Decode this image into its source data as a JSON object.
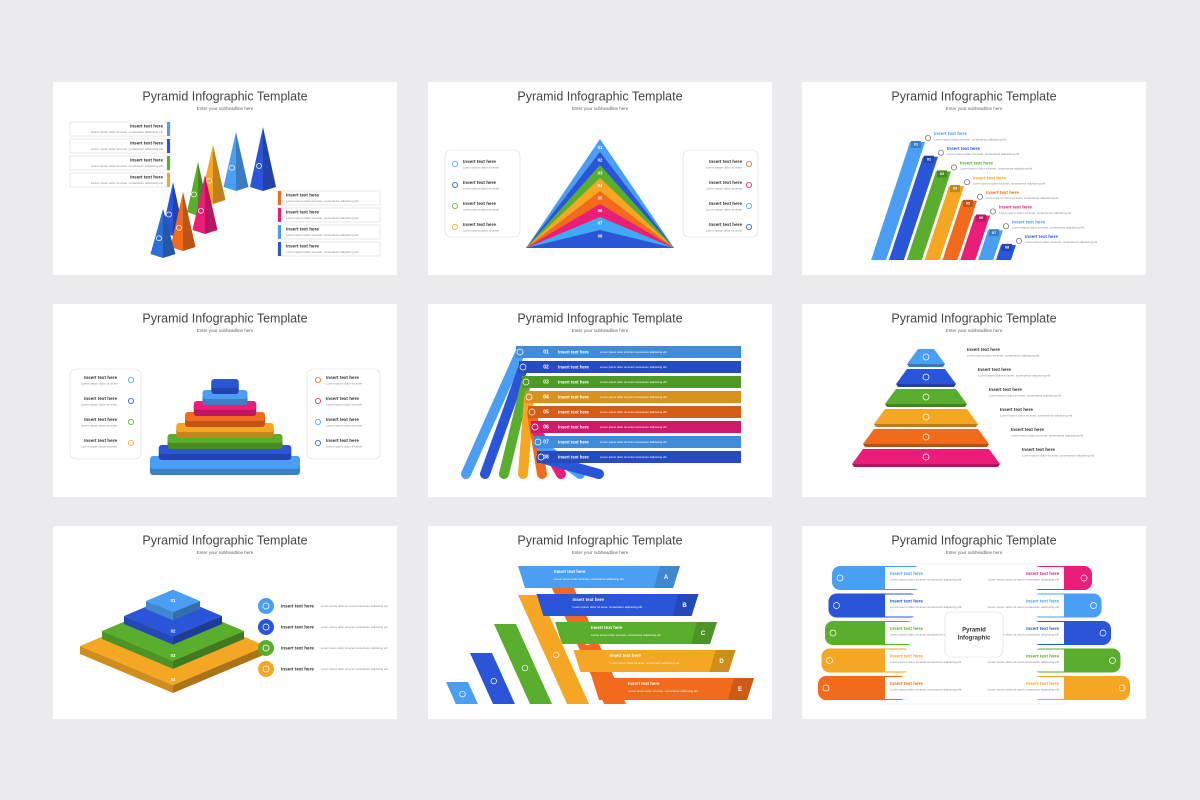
{
  "slides": [
    {
      "title": "Pyramid Infographic Template",
      "subtitle": "Enter your subheadline here",
      "items": [
        {
          "heading": "Insert text here",
          "text": "Lorem ipsum dolor sit amet, consectetur adipiscing elit"
        },
        {
          "heading": "Insert text here",
          "text": "Lorem ipsum dolor sit amet, consectetur adipiscing elit"
        },
        {
          "heading": "Insert text here",
          "text": "Lorem ipsum dolor sit amet, consectetur adipiscing elit"
        },
        {
          "heading": "Insert text here",
          "text": "Lorem ipsum dolor sit amet, consectetur adipiscing elit"
        },
        {
          "heading": "Insert text here",
          "text": "Lorem ipsum dolor sit amet, consectetur adipiscing elit"
        },
        {
          "heading": "Insert text here",
          "text": "Lorem ipsum dolor sit amet, consectetur adipiscing elit"
        },
        {
          "heading": "Insert text here",
          "text": "Lorem ipsum dolor sit amet, consectetur adipiscing elit"
        },
        {
          "heading": "Insert text here",
          "text": "Lorem ipsum dolor sit amet, consectetur adipiscing elit"
        }
      ]
    },
    {
      "title": "Pyramid Infographic Template",
      "subtitle": "Enter your subheadline here",
      "items": [
        {
          "heading": "Insert text here",
          "text": "Lorem ipsum dolor sit amet"
        },
        {
          "heading": "Insert text here",
          "text": "Lorem ipsum dolor sit amet"
        },
        {
          "heading": "Insert text here",
          "text": "Lorem ipsum dolor sit amet"
        },
        {
          "heading": "Insert text here",
          "text": "Lorem ipsum dolor sit amet"
        },
        {
          "heading": "Insert text here",
          "text": "Lorem ipsum dolor sit amet"
        },
        {
          "heading": "Insert text here",
          "text": "Lorem ipsum dolor sit amet"
        },
        {
          "heading": "Insert text here",
          "text": "Lorem ipsum dolor sit amet"
        },
        {
          "heading": "Insert text here",
          "text": "Lorem ipsum dolor sit amet"
        }
      ],
      "labels": [
        "01",
        "02",
        "03",
        "04",
        "05",
        "06",
        "07",
        "08"
      ]
    },
    {
      "title": "Pyramid Infographic Template",
      "subtitle": "Enter your subheadline here",
      "items": [
        {
          "heading": "Insert text here",
          "text": "Lorem ipsum dolor sit amet, consectetur adipiscing elit"
        },
        {
          "heading": "Insert text here",
          "text": "Lorem ipsum dolor sit amet, consectetur adipiscing elit"
        },
        {
          "heading": "Insert text here",
          "text": "Lorem ipsum dolor sit amet, consectetur adipiscing elit"
        },
        {
          "heading": "Insert text here",
          "text": "Lorem ipsum dolor sit amet, consectetur adipiscing elit"
        },
        {
          "heading": "Insert text here",
          "text": "Lorem ipsum dolor sit amet, consectetur adipiscing elit"
        },
        {
          "heading": "Insert text here",
          "text": "Lorem ipsum dolor sit amet, consectetur adipiscing elit"
        },
        {
          "heading": "Insert text here",
          "text": "Lorem ipsum dolor sit amet, consectetur adipiscing elit"
        },
        {
          "heading": "Insert text here",
          "text": "Lorem ipsum dolor sit amet, consectetur adipiscing elit"
        }
      ],
      "labels": [
        "01",
        "02",
        "03",
        "04",
        "05",
        "06",
        "07",
        "08"
      ]
    },
    {
      "title": "Pyramid Infographic Template",
      "subtitle": "Enter your subheadline here",
      "items": [
        {
          "heading": "Insert text here",
          "text": "Lorem ipsum dolor sit amet"
        },
        {
          "heading": "Insert text here",
          "text": "Lorem ipsum dolor sit amet"
        },
        {
          "heading": "Insert text here",
          "text": "Lorem ipsum dolor sit amet"
        },
        {
          "heading": "Insert text here",
          "text": "Lorem ipsum dolor sit amet"
        },
        {
          "heading": "Insert text here",
          "text": "Lorem ipsum dolor sit amet"
        },
        {
          "heading": "Insert text here",
          "text": "Lorem ipsum dolor sit amet"
        },
        {
          "heading": "Insert text here",
          "text": "Lorem ipsum dolor sit amet"
        },
        {
          "heading": "Insert text here",
          "text": "Lorem ipsum dolor sit amet"
        }
      ]
    },
    {
      "title": "Pyramid Infographic Template",
      "subtitle": "Enter your subheadline here",
      "items": [
        {
          "heading": "Insert text here",
          "text": "Lorem ipsum dolor sit amet consectetur adipiscing elit"
        },
        {
          "heading": "Insert text here",
          "text": "Lorem ipsum dolor sit amet consectetur adipiscing elit"
        },
        {
          "heading": "Insert text here",
          "text": "Lorem ipsum dolor sit amet consectetur adipiscing elit"
        },
        {
          "heading": "Insert text here",
          "text": "Lorem ipsum dolor sit amet consectetur adipiscing elit"
        },
        {
          "heading": "Insert text here",
          "text": "Lorem ipsum dolor sit amet consectetur adipiscing elit"
        },
        {
          "heading": "Insert text here",
          "text": "Lorem ipsum dolor sit amet consectetur adipiscing elit"
        },
        {
          "heading": "Insert text here",
          "text": "Lorem ipsum dolor sit amet consectetur adipiscing elit"
        },
        {
          "heading": "Insert text here",
          "text": "Lorem ipsum dolor sit amet consectetur adipiscing elit"
        }
      ],
      "labels": [
        "01",
        "02",
        "03",
        "04",
        "05",
        "06",
        "07",
        "08"
      ]
    },
    {
      "title": "Pyramid Infographic Template",
      "subtitle": "Enter your subheadline here",
      "items": [
        {
          "heading": "Insert text here",
          "text": "Lorem ipsum dolor sit amet, consectetur adipiscing elit"
        },
        {
          "heading": "Insert text here",
          "text": "Lorem ipsum dolor sit amet, consectetur adipiscing elit"
        },
        {
          "heading": "Insert text here",
          "text": "Lorem ipsum dolor sit amet, consectetur adipiscing elit"
        },
        {
          "heading": "Insert text here",
          "text": "Lorem ipsum dolor sit amet, consectetur adipiscing elit"
        },
        {
          "heading": "Insert text here",
          "text": "Lorem ipsum dolor sit amet, consectetur adipiscing elit"
        },
        {
          "heading": "Insert text here",
          "text": "Lorem ipsum dolor sit amet, consectetur adipiscing elit"
        }
      ]
    },
    {
      "title": "Pyramid Infographic Template",
      "subtitle": "Enter your subheadline here",
      "items": [
        {
          "heading": "Insert text here",
          "text": "Lorem ipsum dolor sit amet consectetur adipiscing elit"
        },
        {
          "heading": "Insert text here",
          "text": "Lorem ipsum dolor sit amet consectetur adipiscing elit"
        },
        {
          "heading": "Insert text here",
          "text": "Lorem ipsum dolor sit amet consectetur adipiscing elit"
        },
        {
          "heading": "Insert text here",
          "text": "Lorem ipsum dolor sit amet consectetur adipiscing elit"
        }
      ],
      "labels": [
        "01",
        "02",
        "03",
        "04"
      ]
    },
    {
      "title": "Pyramid Infographic Template",
      "subtitle": "Enter your subheadline here",
      "items": [
        {
          "heading": "Insert text here",
          "text": "Lorem ipsum dolor sit amet, consectetur adipiscing elit"
        },
        {
          "heading": "Insert text here",
          "text": "Lorem ipsum dolor sit amet, consectetur adipiscing elit"
        },
        {
          "heading": "Insert text here",
          "text": "Lorem ipsum dolor sit amet, consectetur adipiscing elit"
        },
        {
          "heading": "Insert text here",
          "text": "Lorem ipsum dolor sit amet, consectetur adipiscing elit"
        },
        {
          "heading": "Insert text here",
          "text": "Lorem ipsum dolor sit amet, consectetur adipiscing elit"
        }
      ],
      "labels": [
        "A",
        "B",
        "C",
        "D",
        "E"
      ]
    },
    {
      "title": "Pyramid Infographic Template",
      "subtitle": "Enter your subheadline here",
      "items": [
        {
          "heading": "Insert text here",
          "text": "Lorem ipsum dolor sit amet consectetur adipiscing elit"
        },
        {
          "heading": "Insert text here",
          "text": "Lorem ipsum dolor sit amet consectetur adipiscing elit"
        },
        {
          "heading": "Insert text here",
          "text": "Lorem ipsum dolor sit amet consectetur adipiscing elit"
        },
        {
          "heading": "Insert text here",
          "text": "Lorem ipsum dolor sit amet consectetur adipiscing elit"
        },
        {
          "heading": "Insert text here",
          "text": "Lorem ipsum dolor sit amet consectetur adipiscing elit"
        },
        {
          "heading": "Insert text here",
          "text": "Lorem ipsum dolor sit amet consectetur adipiscing elit"
        },
        {
          "heading": "Insert text here",
          "text": "Lorem ipsum dolor sit amet consectetur adipiscing elit"
        },
        {
          "heading": "Insert text here",
          "text": "Lorem ipsum dolor sit amet consectetur adipiscing elit"
        },
        {
          "heading": "Insert text here",
          "text": "Lorem ipsum dolor sit amet consectetur adipiscing elit"
        },
        {
          "heading": "Insert text here",
          "text": "Lorem ipsum dolor sit amet consectetur adipiscing elit"
        }
      ],
      "center_label": [
        "Pyramid",
        "Infographic"
      ]
    }
  ]
}
